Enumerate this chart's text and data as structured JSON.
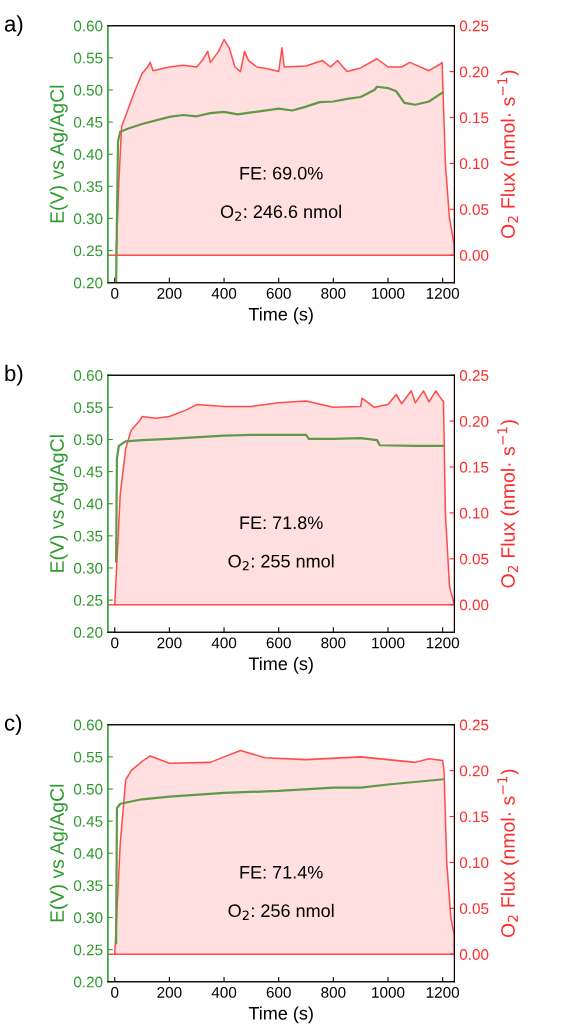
{
  "chart_data": [
    {
      "type": "line",
      "title": "a)",
      "xlabel": "Time (s)",
      "ylabel": "E(V) vs Ag/AgCl",
      "y2label": "O$_{2}$ Flux (nmol· s$^{−1}$)",
      "xlim": [
        -25,
        1243
      ],
      "xticks": [
        0,
        200,
        400,
        600,
        800,
        1000,
        1200
      ],
      "ylim": [
        0.2,
        0.6
      ],
      "yticks": [
        {
          "value": 0.2,
          "label": "0.20"
        },
        {
          "value": 0.25,
          "label": "0.25"
        },
        {
          "value": 0.3,
          "label": "0.30"
        },
        {
          "value": 0.35,
          "label": "0.35"
        },
        {
          "value": 0.4,
          "label": "0.40"
        },
        {
          "value": 0.45,
          "label": "0.45"
        },
        {
          "value": 0.5,
          "label": "0.50"
        },
        {
          "value": 0.55,
          "label": "0.55"
        },
        {
          "value": 0.6,
          "label": "0.60"
        }
      ],
      "y2lim": [
        -0.03,
        0.25
      ],
      "y2ticks": [
        {
          "value": 0,
          "label": "0.00"
        },
        {
          "value": 0.05,
          "label": "0.05"
        },
        {
          "value": 0.1,
          "label": "0.10"
        },
        {
          "value": 0.15,
          "label": "0.15"
        },
        {
          "value": 0.2,
          "label": "0.20"
        },
        {
          "value": 0.25,
          "label": "0.25"
        }
      ],
      "annotations": [
        "FE: 69.0%",
        "O$_{2}$: 246.6 nmol"
      ],
      "series": [
        {
          "type": "area",
          "axis": "y2",
          "color": "#ff4d4d",
          "x": [
            -25,
            0,
            5,
            15,
            25,
            50,
            75,
            100,
            120,
            130,
            140,
            200,
            250,
            300,
            320,
            340,
            350,
            380,
            400,
            420,
            440,
            460,
            475,
            490,
            520,
            560,
            600,
            612,
            620,
            700,
            760,
            790,
            815,
            850,
            900,
            960,
            1000,
            1050,
            1080,
            1150,
            1190,
            1198,
            1210,
            1225,
            1243
          ],
          "values": [
            0,
            0,
            0,
            0.08,
            0.14,
            0.16,
            0.18,
            0.198,
            0.205,
            0.21,
            0.201,
            0.205,
            0.207,
            0.205,
            0.212,
            0.222,
            0.21,
            0.222,
            0.235,
            0.225,
            0.205,
            0.2,
            0.222,
            0.212,
            0.205,
            0.203,
            0.2,
            0.226,
            0.205,
            0.206,
            0.212,
            0.205,
            0.212,
            0.2,
            0.204,
            0.214,
            0.205,
            0.205,
            0.21,
            0.201,
            0.208,
            0.21,
            0.1,
            0.04,
            0.01
          ]
        },
        {
          "axis": "y",
          "color": "#5f9a48",
          "x": [
            5,
            8,
            12,
            20,
            50,
            100,
            200,
            250,
            300,
            350,
            400,
            450,
            500,
            600,
            650,
            700,
            750,
            800,
            850,
            900,
            950,
            960,
            1000,
            1030,
            1060,
            1100,
            1150,
            1200
          ],
          "values": [
            0.2,
            0.3,
            0.42,
            0.435,
            0.44,
            0.447,
            0.458,
            0.461,
            0.459,
            0.464,
            0.466,
            0.462,
            0.465,
            0.471,
            0.468,
            0.474,
            0.481,
            0.482,
            0.486,
            0.489,
            0.5,
            0.505,
            0.503,
            0.498,
            0.48,
            0.477,
            0.482,
            0.496
          ]
        }
      ]
    },
    {
      "type": "line",
      "title": "b)",
      "xlabel": "Time (s)",
      "ylabel": "E(V) vs Ag/AgCl",
      "y2label": "O$_{2}$ Flux (nmol· s$^{−1}$)",
      "xlim": [
        -25,
        1243
      ],
      "xticks": [
        0,
        200,
        400,
        600,
        800,
        1000,
        1200
      ],
      "ylim": [
        0.2,
        0.6
      ],
      "yticks": [
        {
          "value": 0.2,
          "label": "0.20"
        },
        {
          "value": 0.25,
          "label": "0.25"
        },
        {
          "value": 0.3,
          "label": "0.30"
        },
        {
          "value": 0.35,
          "label": "0.35"
        },
        {
          "value": 0.4,
          "label": "0.40"
        },
        {
          "value": 0.45,
          "label": "0.45"
        },
        {
          "value": 0.5,
          "label": "0.50"
        },
        {
          "value": 0.55,
          "label": "0.55"
        },
        {
          "value": 0.6,
          "label": "0.60"
        }
      ],
      "y2lim": [
        -0.03,
        0.25
      ],
      "y2ticks": [
        {
          "value": 0,
          "label": "0.00"
        },
        {
          "value": 0.05,
          "label": "0.05"
        },
        {
          "value": 0.1,
          "label": "0.10"
        },
        {
          "value": 0.15,
          "label": "0.15"
        },
        {
          "value": 0.2,
          "label": "0.20"
        },
        {
          "value": 0.25,
          "label": "0.25"
        }
      ],
      "annotations": [
        "FE: 71.8%",
        "O$_{2}$: 255 nmol"
      ],
      "series": [
        {
          "type": "area",
          "axis": "y2",
          "color": "#ff4d4d",
          "x": [
            -25,
            0,
            20,
            40,
            60,
            90,
            100,
            150,
            200,
            260,
            300,
            400,
            500,
            600,
            700,
            800,
            900,
            905,
            950,
            1000,
            1030,
            1050,
            1085,
            1100,
            1130,
            1150,
            1175,
            1200,
            1203,
            1210,
            1225,
            1243
          ],
          "values": [
            0,
            0,
            0.12,
            0.17,
            0.19,
            0.2,
            0.205,
            0.203,
            0.205,
            0.212,
            0.218,
            0.216,
            0.216,
            0.22,
            0.222,
            0.215,
            0.216,
            0.225,
            0.215,
            0.218,
            0.229,
            0.219,
            0.233,
            0.22,
            0.233,
            0.221,
            0.233,
            0.222,
            0.222,
            0.1,
            0.02,
            0
          ]
        },
        {
          "axis": "y",
          "color": "#5f9a48",
          "x": [
            5,
            8,
            15,
            40,
            100,
            200,
            400,
            500,
            600,
            700,
            710,
            800,
            900,
            960,
            970,
            1100,
            1200
          ],
          "values": [
            0.31,
            0.47,
            0.49,
            0.497,
            0.499,
            0.501,
            0.506,
            0.507,
            0.507,
            0.507,
            0.501,
            0.501,
            0.502,
            0.499,
            0.491,
            0.49,
            0.49
          ]
        }
      ]
    },
    {
      "type": "line",
      "title": "c)",
      "xlabel": "Time (s)",
      "ylabel": "E(V) vs Ag/AgCl",
      "y2label": "O$_{2}$ Flux (nmol· s$^{−1}$)",
      "xlim": [
        -25,
        1243
      ],
      "xticks": [
        0,
        200,
        400,
        600,
        800,
        1000,
        1200
      ],
      "ylim": [
        0.2,
        0.6
      ],
      "yticks": [
        {
          "value": 0.2,
          "label": "0.20"
        },
        {
          "value": 0.25,
          "label": "0.25"
        },
        {
          "value": 0.3,
          "label": "0.30"
        },
        {
          "value": 0.35,
          "label": "0.35"
        },
        {
          "value": 0.4,
          "label": "0.40"
        },
        {
          "value": 0.45,
          "label": "0.45"
        },
        {
          "value": 0.5,
          "label": "0.50"
        },
        {
          "value": 0.55,
          "label": "0.55"
        },
        {
          "value": 0.6,
          "label": "0.60"
        }
      ],
      "y2lim": [
        -0.03,
        0.25
      ],
      "y2ticks": [
        {
          "value": 0,
          "label": "0.00"
        },
        {
          "value": 0.05,
          "label": "0.05"
        },
        {
          "value": 0.1,
          "label": "0.10"
        },
        {
          "value": 0.15,
          "label": "0.15"
        },
        {
          "value": 0.2,
          "label": "0.20"
        },
        {
          "value": 0.25,
          "label": "0.25"
        }
      ],
      "annotations": [
        "FE: 71.4%",
        "O$_{2}$: 256 nmol"
      ],
      "series": [
        {
          "type": "area",
          "axis": "y2",
          "color": "#ff4d4d",
          "x": [
            -25,
            0,
            20,
            40,
            60,
            100,
            130,
            200,
            350,
            400,
            460,
            550,
            700,
            900,
            1100,
            1150,
            1200,
            1205,
            1215,
            1230,
            1243
          ],
          "values": [
            0,
            0,
            0.12,
            0.19,
            0.2,
            0.21,
            0.216,
            0.208,
            0.209,
            0.215,
            0.222,
            0.214,
            0.212,
            0.215,
            0.209,
            0.213,
            0.211,
            0.2,
            0.1,
            0.04,
            0.02
          ]
        },
        {
          "axis": "y",
          "color": "#5f9a48",
          "x": [
            5,
            8,
            20,
            100,
            200,
            400,
            600,
            800,
            900,
            1000,
            1200
          ],
          "values": [
            0.26,
            0.47,
            0.477,
            0.484,
            0.488,
            0.494,
            0.497,
            0.502,
            0.502,
            0.507,
            0.515
          ]
        }
      ]
    }
  ]
}
